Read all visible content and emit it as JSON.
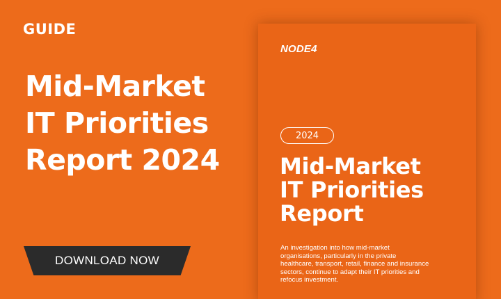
{
  "banner": {
    "eyebrow": "GUIDE",
    "headline_lines": [
      "Mid-Market",
      "IT Priorities",
      "Report 2024"
    ],
    "cta_label": "DOWNLOAD NOW"
  },
  "cover": {
    "logo_text": "NODE4",
    "year": "2024",
    "title_lines": [
      "Mid-Market",
      "IT Priorities",
      "Report"
    ],
    "description": "An investigation into how mid-market organisations, particularly in the private healthcare, transport, retail, finance and insurance sectors, continue to adapt their IT priorities and refocus investment."
  },
  "colors": {
    "background": "#ed6b1b",
    "cover_background": "#ea6517",
    "button": "#2b2b2b",
    "text": "#ffffff"
  }
}
